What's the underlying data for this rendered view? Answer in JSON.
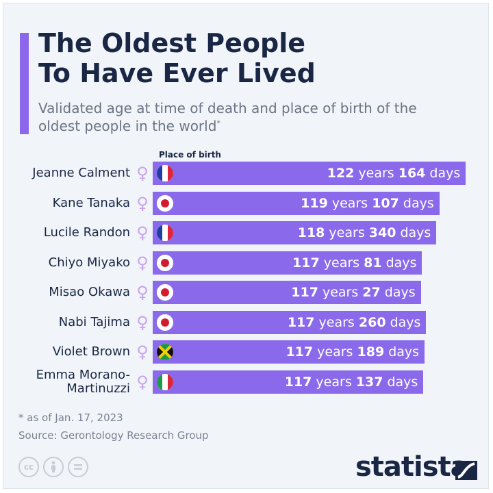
{
  "title_line1": "The Oldest People",
  "title_line2": "To Have Ever Lived",
  "subtitle": "Validated age at time of death and place of birth of the oldest people in the world",
  "subtitle_mark": "*",
  "place_of_birth_label": "Place of birth",
  "footnote": "* as of Jan. 17, 2023",
  "source": "Source: Gerontology Research Group",
  "brand": "statista",
  "license_icons": [
    "cc",
    "by",
    "nd"
  ],
  "colors": {
    "bar": "#8a6aeb",
    "accent": "#8b67ec",
    "title": "#1a2744",
    "female_symbol": "#c8a5ec"
  },
  "chart_data": {
    "type": "bar",
    "orientation": "horizontal",
    "unit_major": "years",
    "unit_minor": "days",
    "categories": [
      "Jeanne Calment",
      "Kane Tanaka",
      "Lucile Randon",
      "Chiyo Miyako",
      "Misao Okawa",
      "Nabi Tajima",
      "Violet Brown",
      "Emma Morano-Martinuzzi"
    ],
    "years": [
      122,
      119,
      118,
      117,
      117,
      117,
      117,
      117
    ],
    "days": [
      164,
      107,
      340,
      81,
      27,
      260,
      189,
      137
    ],
    "place_of_birth": [
      "France",
      "Japan",
      "France",
      "Japan",
      "Japan",
      "Japan",
      "Jamaica",
      "Italy"
    ],
    "gender": [
      "female",
      "female",
      "female",
      "female",
      "female",
      "female",
      "female",
      "female"
    ],
    "gender_symbol": "♀"
  }
}
